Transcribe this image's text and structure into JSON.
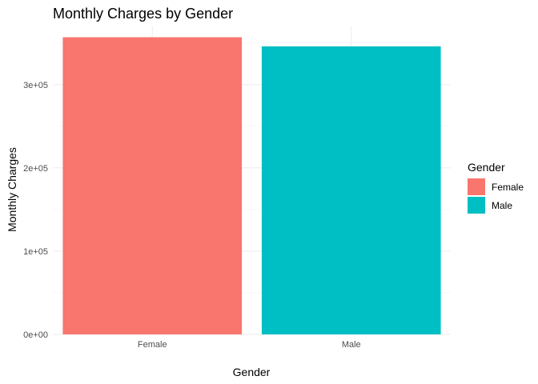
{
  "chart_data": {
    "type": "bar",
    "title": "Monthly Charges by Gender",
    "xlabel": "Gender",
    "ylabel": "Monthly Charges",
    "categories": [
      "Female",
      "Male"
    ],
    "values": [
      357000,
      346000
    ],
    "colors": [
      "#F8766D",
      "#00BFC4"
    ],
    "ylim": [
      0,
      370000
    ],
    "yticks": [
      0,
      100000,
      200000,
      300000
    ],
    "ytick_labels": [
      "0e+00",
      "1e+05",
      "2e+05",
      "3e+05"
    ],
    "grid": true,
    "legend": {
      "title": "Gender",
      "position": "right",
      "items": [
        {
          "label": "Female",
          "color": "#F8766D"
        },
        {
          "label": "Male",
          "color": "#00BFC4"
        }
      ]
    }
  }
}
